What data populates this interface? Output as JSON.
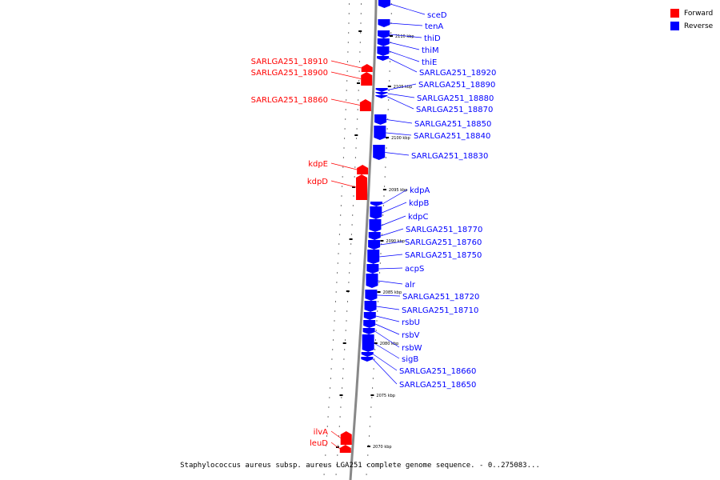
{
  "caption": "Staphylococcus aureus subsp. aureus LGA251 complete genome sequence. - 0..275083...",
  "legend": [
    {
      "label": "Forward",
      "color": "#ff0000"
    },
    {
      "label": "Reverse",
      "color": "#0000ff"
    }
  ],
  "colors": {
    "forward": "#ff0000",
    "reverse": "#0000ff",
    "backbone": "#888888"
  },
  "ticks": [
    "2110 kbp",
    "2105 kbp",
    "2100 kbp",
    "2095 kbp",
    "2090 kbp",
    "2085 kbp",
    "2080 kbp",
    "2075 kbp",
    "2070 kbp"
  ],
  "forward_genes": [
    "SARLGA251_18910",
    "SARLGA251_18900",
    "SARLGA251_18860",
    "kdpE",
    "kdpD",
    "ilvA",
    "leuD"
  ],
  "reverse_genes": [
    "sceD",
    "tenA",
    "thiD",
    "thiM",
    "thiE",
    "SARLGA251_18920",
    "SARLGA251_18890",
    "SARLGA251_18880",
    "SARLGA251_18870",
    "SARLGA251_18850",
    "SARLGA251_18840",
    "SARLGA251_18830",
    "kdpA",
    "kdpB",
    "kdpC",
    "SARLGA251_18770",
    "SARLGA251_18760",
    "SARLGA251_18750",
    "acpS",
    "alr",
    "SARLGA251_18720",
    "SARLGA251_18710",
    "rsbU",
    "rsbV",
    "rsbW",
    "sigB",
    "SARLGA251_18660",
    "SARLGA251_18650"
  ]
}
